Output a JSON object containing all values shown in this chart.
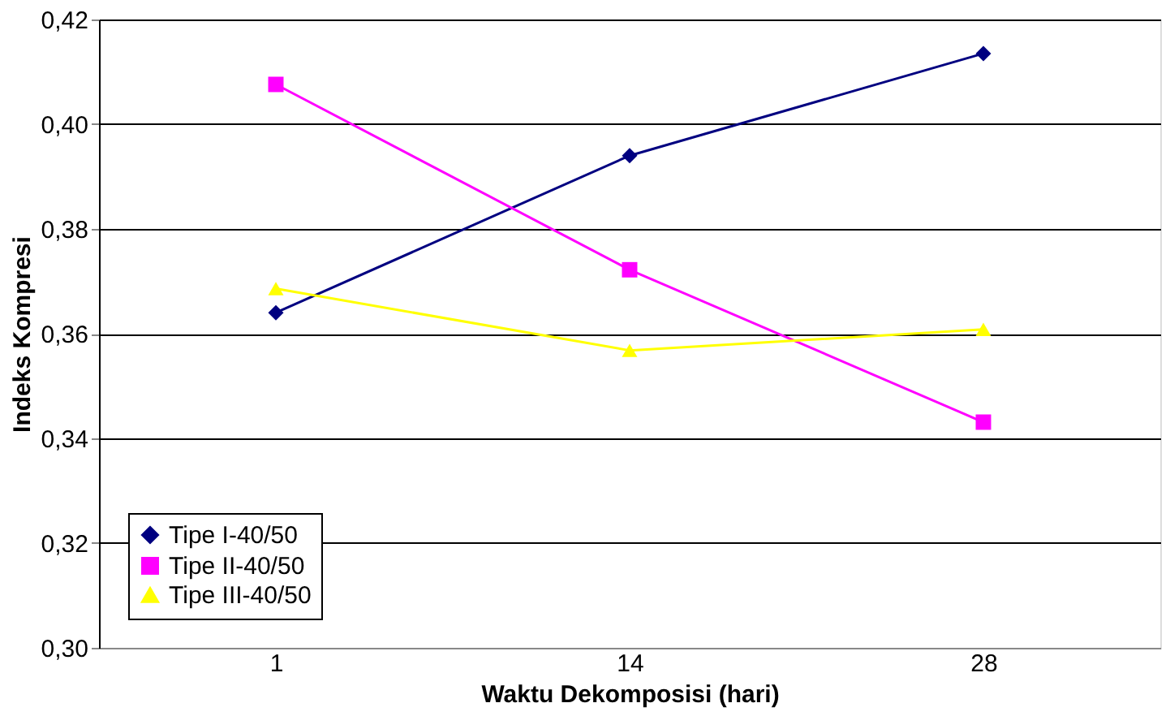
{
  "chart_data": {
    "type": "line",
    "xlabel": "Waktu Dekomposisi (hari)",
    "ylabel": "Indeks Kompresi",
    "categories": [
      "1",
      "14",
      "28"
    ],
    "series": [
      {
        "name": "Tipe I-40/50",
        "color": "#000080",
        "marker": "diamond",
        "values": [
          0.364,
          0.394,
          0.4135
        ]
      },
      {
        "name": "Tipe II-40/50",
        "color": "#ff00ff",
        "marker": "square",
        "values": [
          0.4076,
          0.3722,
          0.3431
        ]
      },
      {
        "name": "Tipe III-40/50",
        "color": "#ffff00",
        "marker": "triangle",
        "values": [
          0.3686,
          0.3568,
          0.3608
        ]
      }
    ],
    "ylim": [
      0.3,
      0.42
    ],
    "yticks": [
      {
        "value": 0.3,
        "label": "0,30"
      },
      {
        "value": 0.32,
        "label": "0,32"
      },
      {
        "value": 0.34,
        "label": "0,34"
      },
      {
        "value": 0.36,
        "label": "0,36"
      },
      {
        "value": 0.38,
        "label": "0,38"
      },
      {
        "value": 0.4,
        "label": "0,40"
      },
      {
        "value": 0.42,
        "label": "0,42"
      }
    ],
    "grid": "y",
    "legend": "bottom left",
    "line_style": "solid"
  }
}
